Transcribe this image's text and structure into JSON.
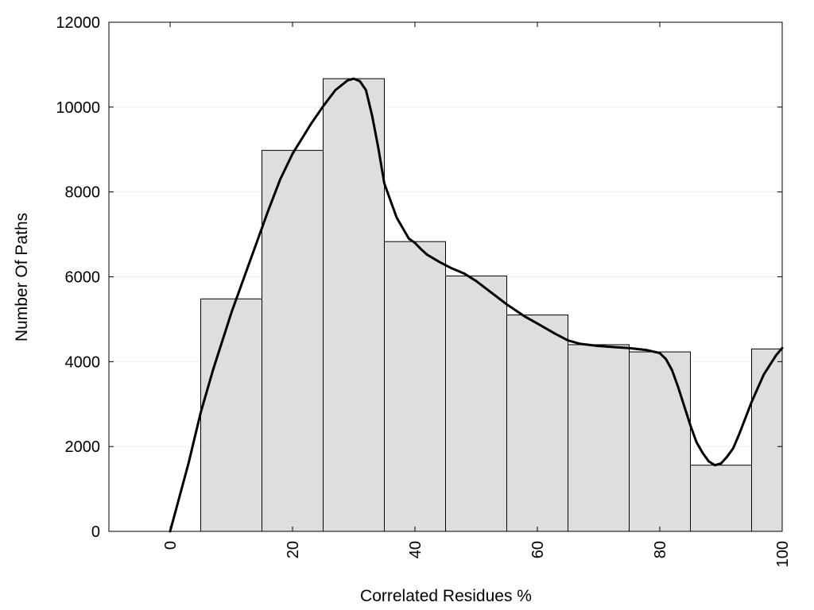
{
  "chart_data": {
    "type": "bar",
    "title": "",
    "xlabel": "Correlated Residues %",
    "ylabel": "Number Of Paths",
    "xlim": [
      -10,
      100
    ],
    "ylim": [
      0,
      12000
    ],
    "x_ticks": [
      0,
      20,
      40,
      60,
      80,
      100
    ],
    "y_ticks": [
      0,
      2000,
      4000,
      6000,
      8000,
      10000,
      12000
    ],
    "grid": "horizontal dotted",
    "bar_color": "#dedede",
    "bar_edge_color": "#000000",
    "bins": [
      {
        "x0": 5,
        "x1": 15,
        "value": 5480
      },
      {
        "x0": 15,
        "x1": 25,
        "value": 8980
      },
      {
        "x0": 25,
        "x1": 35,
        "value": 10670
      },
      {
        "x0": 35,
        "x1": 45,
        "value": 6830
      },
      {
        "x0": 45,
        "x1": 55,
        "value": 6020
      },
      {
        "x0": 55,
        "x1": 65,
        "value": 5100
      },
      {
        "x0": 65,
        "x1": 75,
        "value": 4400
      },
      {
        "x0": 75,
        "x1": 85,
        "value": 4230
      },
      {
        "x0": 85,
        "x1": 95,
        "value": 1560
      },
      {
        "x0": 95,
        "x1": 100,
        "value": 4300
      }
    ],
    "curve": {
      "color": "#000000",
      "x": [
        0,
        3,
        5,
        7,
        10,
        13,
        16,
        18,
        20,
        23,
        25,
        27,
        29,
        30,
        31,
        32,
        33,
        34,
        35,
        37,
        39,
        40,
        41,
        42,
        44,
        46,
        48,
        50,
        52,
        55,
        58,
        60,
        63,
        65,
        67,
        70,
        73,
        75,
        78,
        80,
        81,
        82,
        83,
        84,
        85,
        86,
        87,
        88,
        89,
        90,
        91,
        92,
        93,
        95,
        97,
        99,
        100
      ],
      "y": [
        0,
        1600,
        2800,
        3800,
        5150,
        6350,
        7550,
        8300,
        8900,
        9600,
        10020,
        10400,
        10630,
        10670,
        10610,
        10400,
        9800,
        9050,
        8200,
        7400,
        6900,
        6800,
        6650,
        6520,
        6350,
        6200,
        6080,
        5900,
        5680,
        5350,
        5060,
        4900,
        4650,
        4500,
        4420,
        4370,
        4340,
        4320,
        4270,
        4200,
        4060,
        3800,
        3400,
        2950,
        2500,
        2100,
        1850,
        1650,
        1560,
        1600,
        1760,
        1960,
        2300,
        3050,
        3700,
        4150,
        4320
      ]
    }
  }
}
